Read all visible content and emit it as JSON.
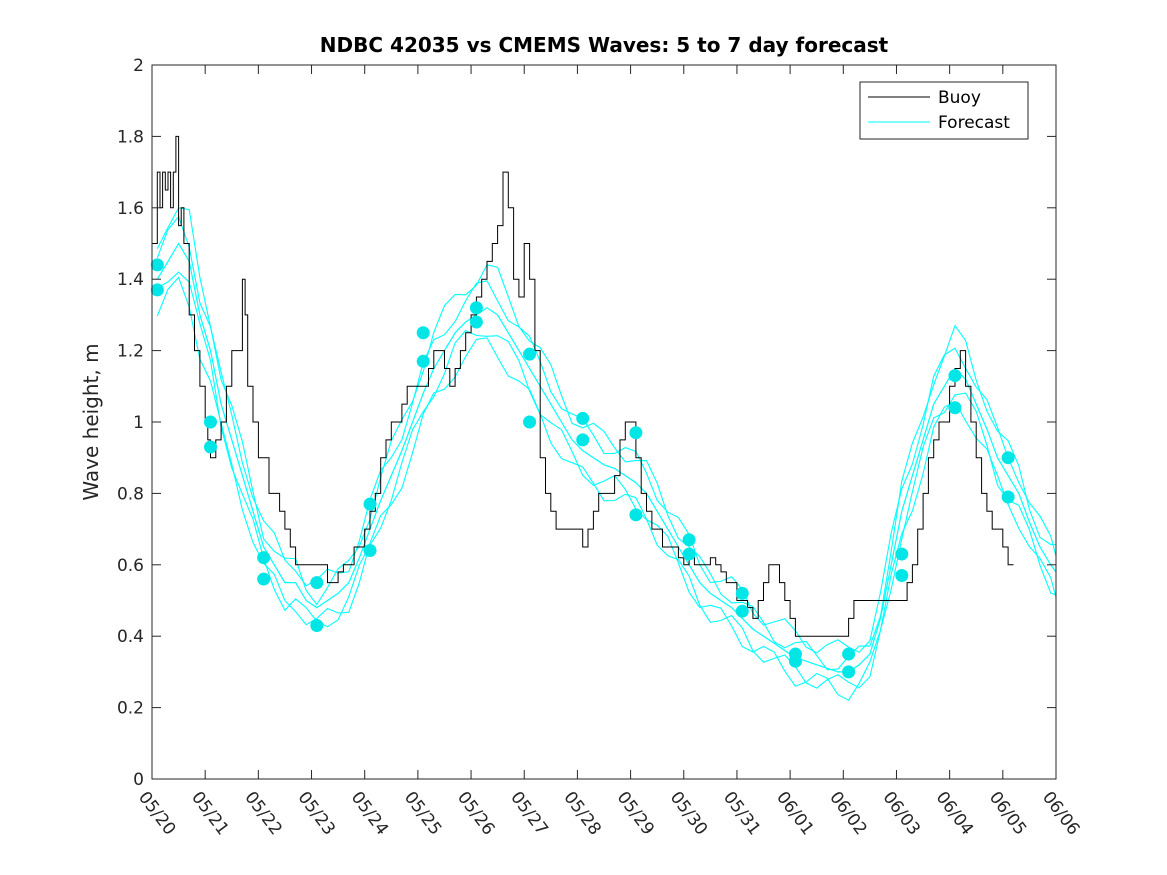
{
  "chart_data": {
    "type": "line",
    "title": "NDBC 42035 vs CMEMS Waves: 5 to 7 day forecast",
    "xlabel": "",
    "ylabel": "Wave height, m",
    "ylim": [
      0,
      2
    ],
    "yticks": [
      "0",
      "0.2",
      "0.4",
      "0.6",
      "0.8",
      "1",
      "1.2",
      "1.4",
      "1.6",
      "1.8",
      "2"
    ],
    "xlim": [
      "05/20",
      "06/06"
    ],
    "xticks": [
      "05/20",
      "05/21",
      "05/22",
      "05/23",
      "05/24",
      "05/25",
      "05/26",
      "05/27",
      "05/28",
      "05/29",
      "05/30",
      "05/31",
      "06/01",
      "06/02",
      "06/03",
      "06/04",
      "06/05",
      "06/06"
    ],
    "grid": false,
    "legend": {
      "placement": "top-right",
      "entries": [
        "Buoy",
        "Forecast"
      ]
    },
    "colors": {
      "buoy": "#000000",
      "forecast": "#00ffff",
      "markers": "#00e6e6"
    },
    "series": [
      {
        "name": "Buoy",
        "color": "#000000",
        "x": [
          0.0,
          0.1,
          0.15,
          0.2,
          0.25,
          0.3,
          0.35,
          0.4,
          0.45,
          0.5,
          0.55,
          0.6,
          0.7,
          0.75,
          0.8,
          0.9,
          1.0,
          1.05,
          1.1,
          1.2,
          1.3,
          1.4,
          1.5,
          1.6,
          1.7,
          1.75,
          1.8,
          1.9,
          2.0,
          2.1,
          2.2,
          2.3,
          2.4,
          2.5,
          2.6,
          2.7,
          2.8,
          2.9,
          3.0,
          3.1,
          3.2,
          3.3,
          3.4,
          3.5,
          3.6,
          3.7,
          3.8,
          3.9,
          4.0,
          4.1,
          4.2,
          4.3,
          4.4,
          4.5,
          4.6,
          4.7,
          4.8,
          4.9,
          5.0,
          5.1,
          5.2,
          5.3,
          5.4,
          5.5,
          5.6,
          5.7,
          5.8,
          5.9,
          6.0,
          6.1,
          6.2,
          6.3,
          6.4,
          6.5,
          6.6,
          6.7,
          6.8,
          6.9,
          7.0,
          7.1,
          7.2,
          7.3,
          7.4,
          7.5,
          7.6,
          7.7,
          7.8,
          7.9,
          8.0,
          8.1,
          8.2,
          8.3,
          8.4,
          8.5,
          8.6,
          8.7,
          8.8,
          8.9,
          9.0,
          9.1,
          9.2,
          9.3,
          9.4,
          9.5,
          9.6,
          9.7,
          9.8,
          9.9,
          10.0,
          10.1,
          10.2,
          10.3,
          10.4,
          10.5,
          10.6,
          10.7,
          10.8,
          10.9,
          11.0,
          11.1,
          11.2,
          11.3,
          11.4,
          11.5,
          11.6,
          11.7,
          11.8,
          11.9,
          12.0,
          12.1,
          12.2,
          12.3,
          12.4,
          12.5,
          12.6,
          12.7,
          12.8,
          12.9,
          13.0,
          13.1,
          13.2,
          13.3,
          13.4,
          13.5,
          13.6,
          13.7,
          13.8,
          13.9,
          14.0,
          14.1,
          14.2,
          14.3,
          14.4,
          14.5,
          14.6,
          14.7,
          14.8,
          14.9,
          15.0,
          15.1,
          15.2,
          15.3,
          15.4,
          15.5,
          15.6,
          15.7,
          15.8,
          15.9,
          16.0,
          16.1,
          16.2
        ],
        "values": [
          1.5,
          1.7,
          1.6,
          1.7,
          1.65,
          1.7,
          1.6,
          1.7,
          1.8,
          1.55,
          1.6,
          1.5,
          1.3,
          1.3,
          1.2,
          1.1,
          1.0,
          0.95,
          0.9,
          0.95,
          1.0,
          1.1,
          1.2,
          1.2,
          1.4,
          1.3,
          1.1,
          1.0,
          0.9,
          0.9,
          0.8,
          0.8,
          0.75,
          0.7,
          0.65,
          0.6,
          0.6,
          0.6,
          0.6,
          0.6,
          0.6,
          0.55,
          0.55,
          0.58,
          0.6,
          0.6,
          0.65,
          0.65,
          0.7,
          0.75,
          0.8,
          0.9,
          0.95,
          1.0,
          1.0,
          1.05,
          1.1,
          1.1,
          1.1,
          1.1,
          1.15,
          1.2,
          1.2,
          1.15,
          1.1,
          1.15,
          1.2,
          1.25,
          1.3,
          1.35,
          1.4,
          1.45,
          1.5,
          1.55,
          1.7,
          1.6,
          1.4,
          1.35,
          1.5,
          1.4,
          1.2,
          0.9,
          0.8,
          0.75,
          0.7,
          0.7,
          0.7,
          0.7,
          0.7,
          0.65,
          0.7,
          0.75,
          0.8,
          0.8,
          0.8,
          0.85,
          0.95,
          1.0,
          1.0,
          0.9,
          0.8,
          0.75,
          0.7,
          0.7,
          0.65,
          0.65,
          0.65,
          0.62,
          0.6,
          0.62,
          0.6,
          0.6,
          0.6,
          0.62,
          0.6,
          0.58,
          0.55,
          0.55,
          0.5,
          0.5,
          0.48,
          0.45,
          0.5,
          0.55,
          0.6,
          0.6,
          0.55,
          0.5,
          0.45,
          0.4,
          0.4,
          0.4,
          0.4,
          0.4,
          0.4,
          0.4,
          0.4,
          0.4,
          0.4,
          0.45,
          0.5,
          0.5,
          0.5,
          0.5,
          0.5,
          0.5,
          0.5,
          0.5,
          0.5,
          0.5,
          0.55,
          0.6,
          0.7,
          0.8,
          0.9,
          0.95,
          1.0,
          1.0,
          1.1,
          1.15,
          1.2,
          1.1,
          1.0,
          0.9,
          0.8,
          0.75,
          0.7,
          0.7,
          0.65,
          0.6,
          0.6
        ]
      },
      {
        "name": "Forecast",
        "color": "#00ffff",
        "x": [
          0.1,
          0.3,
          0.5,
          0.7,
          0.9,
          1.1,
          1.3,
          1.5,
          1.7,
          1.9,
          2.1,
          2.3,
          2.5,
          2.7,
          2.9,
          3.1,
          3.3,
          3.5,
          3.7,
          3.9,
          4.1,
          4.3,
          4.5,
          4.7,
          4.9,
          5.1,
          5.3,
          5.5,
          5.7,
          5.9,
          6.1,
          6.3,
          6.5,
          6.7,
          6.9,
          7.1,
          7.3,
          7.5,
          7.7,
          7.9,
          8.1,
          8.3,
          8.5,
          8.7,
          8.9,
          9.1,
          9.3,
          9.5,
          9.7,
          9.9,
          10.1,
          10.3,
          10.5,
          10.7,
          10.9,
          11.1,
          11.3,
          11.5,
          11.7,
          11.9,
          12.1,
          12.3,
          12.5,
          12.7,
          12.9,
          13.1,
          13.3,
          13.5,
          13.7,
          13.9,
          14.1,
          14.3,
          14.5,
          14.7,
          14.9,
          15.1,
          15.3,
          15.5,
          15.7,
          15.9,
          16.1,
          16.3,
          16.5,
          16.7,
          16.9,
          17.0
        ],
        "values": [
          1.4,
          1.45,
          1.5,
          1.45,
          1.3,
          1.2,
          1.05,
          0.95,
          0.85,
          0.75,
          0.65,
          0.6,
          0.55,
          0.55,
          0.5,
          0.48,
          0.5,
          0.52,
          0.55,
          0.62,
          0.7,
          0.78,
          0.85,
          0.92,
          1.0,
          1.08,
          1.15,
          1.2,
          1.25,
          1.28,
          1.3,
          1.32,
          1.3,
          1.25,
          1.2,
          1.15,
          1.1,
          1.05,
          1.0,
          0.95,
          0.92,
          0.9,
          0.88,
          0.87,
          0.85,
          0.83,
          0.8,
          0.75,
          0.7,
          0.65,
          0.6,
          0.55,
          0.52,
          0.5,
          0.48,
          0.45,
          0.42,
          0.4,
          0.38,
          0.36,
          0.34,
          0.33,
          0.32,
          0.31,
          0.3,
          0.3,
          0.32,
          0.35,
          0.45,
          0.6,
          0.75,
          0.85,
          0.95,
          1.05,
          1.1,
          1.15,
          1.12,
          1.05,
          0.98,
          0.9,
          0.85,
          0.8,
          0.72,
          0.65,
          0.6,
          0.58
        ]
      }
    ],
    "forecast_points": {
      "x": [
        0.1,
        0.1,
        1.1,
        1.1,
        2.1,
        2.1,
        3.1,
        3.1,
        4.1,
        4.1,
        5.1,
        5.1,
        6.1,
        6.1,
        7.1,
        7.1,
        8.1,
        8.1,
        9.1,
        9.1,
        10.1,
        10.1,
        11.1,
        11.1,
        12.1,
        12.1,
        13.1,
        13.1,
        14.1,
        14.1,
        15.1,
        15.1,
        16.1,
        16.1
      ],
      "values": [
        1.44,
        1.37,
        1.0,
        0.93,
        0.62,
        0.56,
        0.55,
        0.43,
        0.77,
        0.64,
        1.25,
        1.17,
        1.32,
        1.28,
        1.19,
        1.0,
        1.01,
        0.95,
        0.97,
        0.74,
        0.67,
        0.63,
        0.52,
        0.47,
        0.35,
        0.33,
        0.35,
        0.3,
        0.63,
        0.57,
        1.13,
        1.04,
        0.9,
        0.79
      ]
    },
    "forecast_variants": [
      {
        "offset": 0.06,
        "scale": 1.0
      },
      {
        "offset": -0.05,
        "scale": 1.0
      },
      {
        "offset": 0.0,
        "scale": 1.08
      },
      {
        "offset": -0.02,
        "scale": 0.94
      }
    ]
  }
}
